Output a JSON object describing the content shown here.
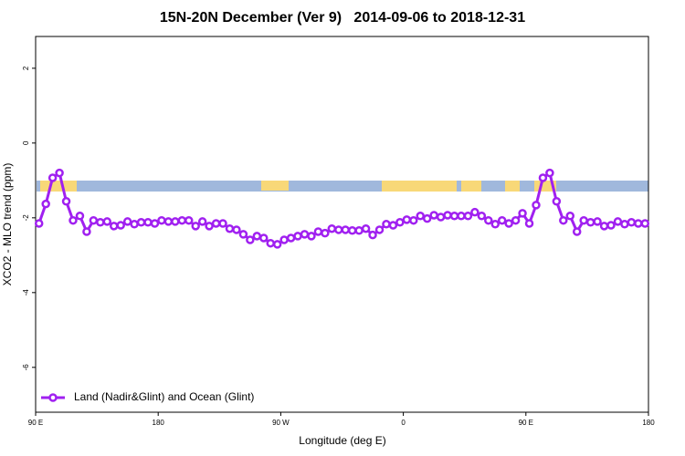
{
  "chart_data": {
    "type": "line",
    "title": "15N-20N December (Ver 9)   2014-09-06 to 2018-12-31",
    "xlabel": "Longitude (deg E)",
    "ylabel": "XCO2 - MLO trend (ppm)",
    "xlim": [
      90,
      540
    ],
    "ylim": [
      -7.2,
      2.85
    ],
    "xticks": [
      {
        "value": 90,
        "label": "90 E"
      },
      180,
      {
        "value": 270,
        "label": "90 W"
      },
      {
        "value": 360,
        "label": "0"
      },
      {
        "value": 450,
        "label": "90 E"
      },
      {
        "value": 540,
        "label": "180"
      }
    ],
    "yticks": [
      -6,
      -4,
      -2,
      0,
      2
    ],
    "legend": "bottom-left",
    "x": [
      92.5,
      97.5,
      102.5,
      107.5,
      112.5,
      117.5,
      122.5,
      127.5,
      132.5,
      137.5,
      142.5,
      147.5,
      152.5,
      157.5,
      162.5,
      167.5,
      172.5,
      177.5,
      182.5,
      187.5,
      192.5,
      197.5,
      202.5,
      207.5,
      212.5,
      217.5,
      222.5,
      227.5,
      232.5,
      237.5,
      242.5,
      247.5,
      252.5,
      257.5,
      262.5,
      267.5,
      272.5,
      277.5,
      282.5,
      287.5,
      292.5,
      297.5,
      302.5,
      307.5,
      312.5,
      317.5,
      322.5,
      327.5,
      332.5,
      337.5,
      342.5,
      347.5,
      352.5,
      357.5,
      362.5,
      367.5,
      372.5,
      377.5,
      382.5,
      387.5,
      392.5,
      397.5,
      402.5,
      407.5,
      412.5,
      417.5,
      422.5,
      427.5,
      432.5,
      437.5,
      442.5,
      447.5,
      452.5,
      457.5,
      462.5,
      467.5,
      472.5,
      477.5,
      482.5,
      487.5,
      492.5,
      497.5,
      502.5,
      507.5,
      512.5,
      517.5,
      522.5,
      527.5,
      532.5,
      537.5
    ],
    "series": [
      {
        "name": "Land (Nadir&Glint) and Ocean (Glint)",
        "color": "#a020f0",
        "values": [
          -2.15,
          -1.63,
          -0.93,
          -0.8,
          -1.56,
          -2.07,
          -1.95,
          -2.37,
          -2.07,
          -2.12,
          -2.1,
          -2.22,
          -2.2,
          -2.1,
          -2.17,
          -2.12,
          -2.12,
          -2.15,
          -2.07,
          -2.1,
          -2.1,
          -2.07,
          -2.07,
          -2.22,
          -2.1,
          -2.22,
          -2.15,
          -2.15,
          -2.29,
          -2.32,
          -2.44,
          -2.59,
          -2.49,
          -2.54,
          -2.68,
          -2.71,
          -2.59,
          -2.54,
          -2.49,
          -2.44,
          -2.49,
          -2.37,
          -2.41,
          -2.29,
          -2.32,
          -2.32,
          -2.34,
          -2.34,
          -2.29,
          -2.46,
          -2.32,
          -2.17,
          -2.2,
          -2.12,
          -2.05,
          -2.07,
          -1.95,
          -2.02,
          -1.93,
          -1.98,
          -1.93,
          -1.95,
          -1.95,
          -1.95,
          -1.85,
          -1.95,
          -2.07,
          -2.17,
          -2.07,
          -2.15,
          -2.07,
          -1.88,
          -2.15,
          -1.66,
          -0.93,
          -0.8,
          -1.56,
          -2.07,
          -1.95,
          -2.37,
          -2.07,
          -2.12,
          -2.1,
          -2.22,
          -2.2,
          -2.1,
          -2.17,
          -2.12,
          -2.15,
          -2.15
        ]
      }
    ]
  }
}
